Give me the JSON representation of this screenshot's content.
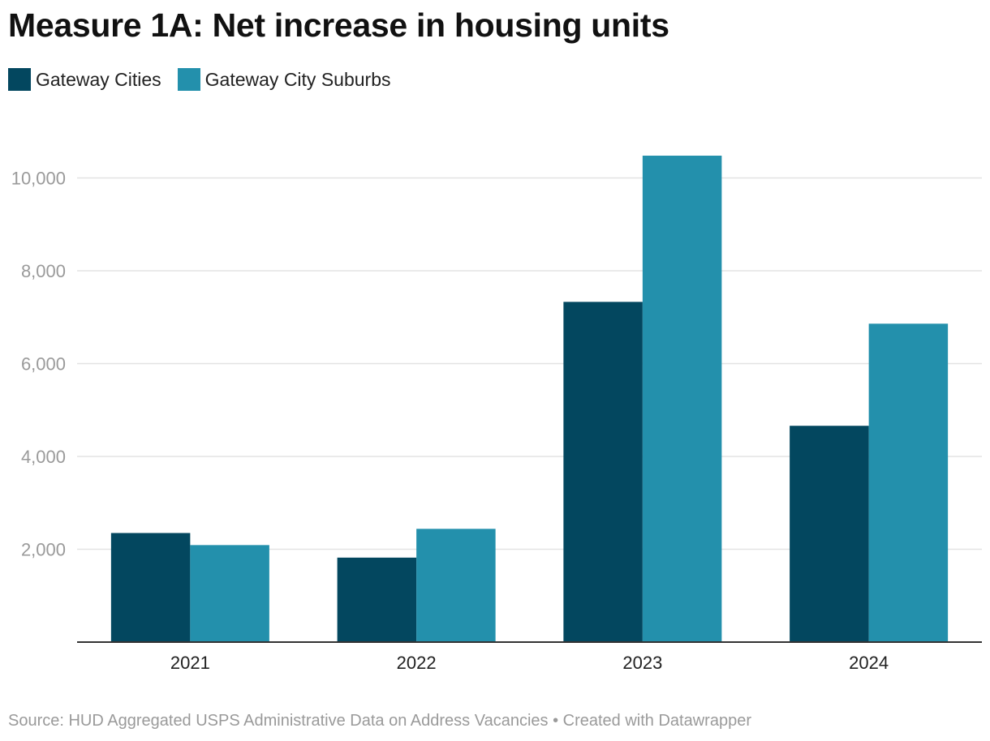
{
  "chart_data": {
    "type": "bar",
    "title": "Measure 1A: Net increase in housing units",
    "categories": [
      "2021",
      "2022",
      "2023",
      "2024"
    ],
    "series": [
      {
        "name": "Gateway Cities",
        "color": "#03475f",
        "values": [
          2350,
          1820,
          7330,
          4660
        ]
      },
      {
        "name": "Gateway City Suburbs",
        "color": "#2390ac",
        "values": [
          2090,
          2440,
          10480,
          6860
        ]
      }
    ],
    "ylim": [
      0,
      10500
    ],
    "yticks": [
      {
        "value": 2000,
        "label": "2,000"
      },
      {
        "value": 4000,
        "label": "4,000"
      },
      {
        "value": 6000,
        "label": "6,000"
      },
      {
        "value": 8000,
        "label": "8,000"
      },
      {
        "value": 10000,
        "label": "10,000"
      }
    ],
    "grid": true,
    "legend_position": "top-left",
    "source": "Source: HUD Aggregated USPS Administrative Data on Address Vacancies • Created with Datawrapper"
  }
}
